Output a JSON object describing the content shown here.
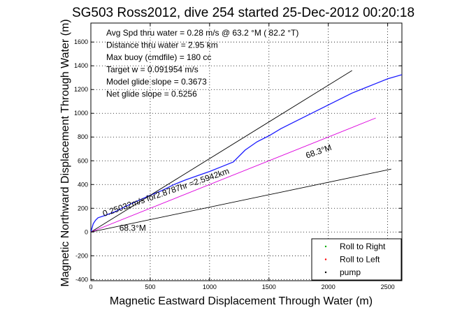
{
  "chart_data": {
    "type": "line",
    "title": "SG503 Ross2012, dive 254 started 25-Dec-2012 00:20:18",
    "xlabel": "Magnetic Eastward Displacement Through Water (m)",
    "ylabel": "Magnetic Northward Displacement Through Water (m)",
    "xlim": [
      0,
      2620
    ],
    "ylim": [
      -410,
      1760
    ],
    "xticks": [
      0,
      500,
      1000,
      1500,
      2000,
      2500
    ],
    "yticks": [
      -400,
      -200,
      0,
      200,
      400,
      600,
      800,
      1000,
      1200,
      1400,
      1600
    ],
    "grid": true,
    "stats_text": [
      "Avg Spd thru water = 0.28 m/s @ 63.2    °M ( 82.2 °T)",
      "Distance thru water = 2.95 km",
      "Max buoy (cmdfile) = 180 cc",
      "Target w = 0.091954 m/s",
      "Model glide slope = 0.3673",
      "Net glide slope = 0.5256"
    ],
    "annotations": [
      {
        "text": "0.25032m/s for2.8787hr =2.5942km",
        "x": 110,
        "y": 130,
        "angle_deg": 19
      },
      {
        "text": "68.3°M",
        "x": 1820,
        "y": 620,
        "angle_deg": 19
      },
      {
        "text": "68.3°M",
        "x": 240,
        "y": 10,
        "angle_deg": 0
      }
    ],
    "series": [
      {
        "color": "#1a1aff",
        "x": [
          0,
          20,
          40,
          60,
          120,
          200,
          300,
          400,
          500,
          600,
          700,
          800,
          900,
          1000,
          1100,
          1200,
          1300,
          1400,
          1500,
          1600,
          1700,
          1800,
          1900,
          2000,
          2100,
          2200,
          2300,
          2400,
          2500,
          2620
        ],
        "y": [
          0,
          70,
          100,
          120,
          140,
          170,
          220,
          265,
          310,
          350,
          400,
          440,
          475,
          510,
          550,
          590,
          690,
          760,
          810,
          870,
          920,
          970,
          1020,
          1070,
          1120,
          1170,
          1210,
          1250,
          1290,
          1325
        ]
      },
      {
        "color": "#000000",
        "x": [
          0,
          2200
        ],
        "y": [
          0,
          1360
        ]
      },
      {
        "color": "#dd00dd",
        "x": [
          0,
          2400
        ],
        "y": [
          0,
          960
        ]
      },
      {
        "color": "#000000",
        "x": [
          0,
          2530
        ],
        "y": [
          0,
          530
        ]
      }
    ],
    "legend": {
      "position": "bottom-right",
      "entries": [
        {
          "label": "Roll to Right",
          "color": "#00aa00"
        },
        {
          "label": "Roll to Left",
          "color": "#ff0000"
        },
        {
          "label": "pump",
          "color": "#000000"
        }
      ]
    }
  }
}
